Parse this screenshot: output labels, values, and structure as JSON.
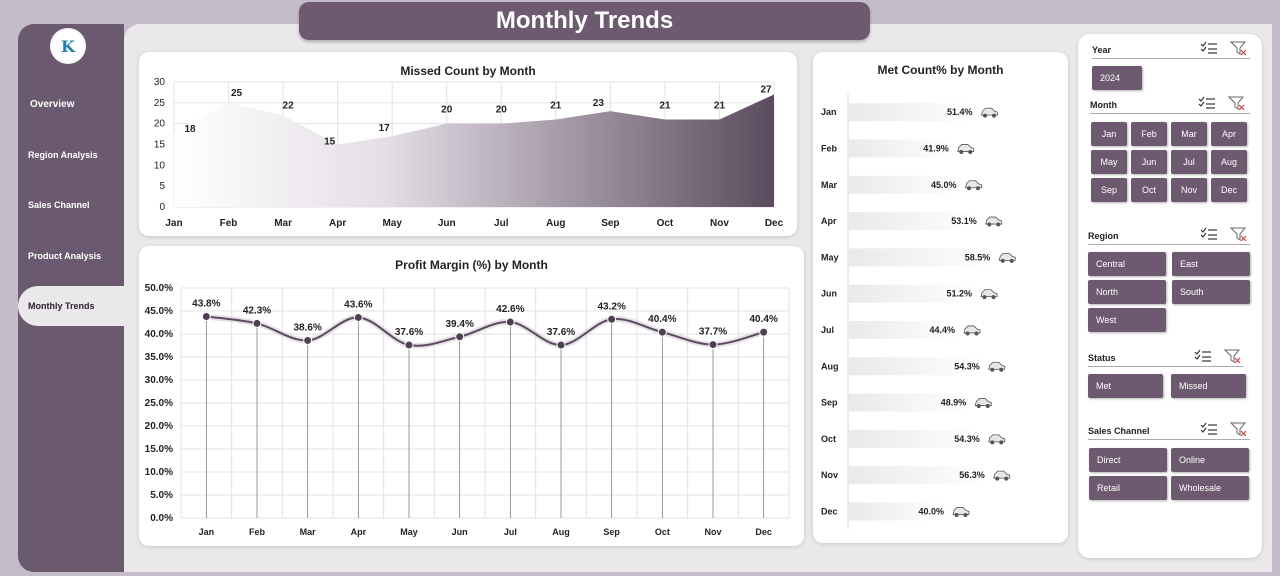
{
  "title": "Monthly Trends",
  "nav": [
    {
      "label": "Overview",
      "name": "nav-overview"
    },
    {
      "label": "Region Analysis",
      "name": "nav-region-analysis"
    },
    {
      "label": "Sales Channel",
      "name": "nav-sales-channel"
    },
    {
      "label": "Product Analysis",
      "name": "nav-product-analysis"
    },
    {
      "label": "Monthly Trends",
      "name": "nav-monthly-trends"
    }
  ],
  "colors": {
    "accent": "#6e5a70",
    "sidebar": "#6b5a6f",
    "line": "#5b4b5e"
  },
  "chart_data": [
    {
      "type": "area",
      "title": "Missed Count by Month",
      "categories": [
        "Jan",
        "Feb",
        "Mar",
        "Apr",
        "May",
        "Jun",
        "Jul",
        "Aug",
        "Sep",
        "Oct",
        "Nov",
        "Dec"
      ],
      "values": [
        18,
        25,
        22,
        15,
        17,
        20,
        20,
        21,
        23,
        21,
        21,
        27
      ],
      "ylim": [
        0,
        30
      ],
      "yticks": [
        "0",
        "5",
        "10",
        "15",
        "20",
        "25",
        "30"
      ],
      "grid": true
    },
    {
      "type": "line",
      "title": "Profit Margin (%) by Month",
      "categories": [
        "Jan",
        "Feb",
        "Mar",
        "Apr",
        "May",
        "Jun",
        "Jul",
        "Aug",
        "Sep",
        "Oct",
        "Nov",
        "Dec"
      ],
      "values": [
        43.8,
        42.3,
        38.6,
        43.6,
        37.6,
        39.4,
        42.6,
        37.6,
        43.2,
        40.4,
        37.7,
        40.4
      ],
      "labels": [
        "43.8%",
        "42.3%",
        "38.6%",
        "43.6%",
        "37.6%",
        "39.4%",
        "42.6%",
        "37.6%",
        "43.2%",
        "40.4%",
        "37.7%",
        "40.4%"
      ],
      "ylim": [
        0,
        50
      ],
      "yticks": [
        "0.0%",
        "5.0%",
        "10.0%",
        "15.0%",
        "20.0%",
        "25.0%",
        "30.0%",
        "35.0%",
        "40.0%",
        "45.0%",
        "50.0%"
      ],
      "grid": true
    },
    {
      "type": "bar",
      "title": "Met Count% by Month",
      "categories": [
        "Jan",
        "Feb",
        "Mar",
        "Apr",
        "May",
        "Jun",
        "Jul",
        "Aug",
        "Sep",
        "Oct",
        "Nov",
        "Dec"
      ],
      "values": [
        51.4,
        41.9,
        45.0,
        53.1,
        58.5,
        51.2,
        44.4,
        54.3,
        48.9,
        54.3,
        56.3,
        40.0
      ],
      "labels": [
        "51.4%",
        "41.9%",
        "45.0%",
        "53.1%",
        "58.5%",
        "51.2%",
        "44.4%",
        "54.3%",
        "48.9%",
        "54.3%",
        "56.3%",
        "40.0%"
      ],
      "xlim": [
        0,
        100
      ],
      "icon": "car-icon"
    }
  ],
  "slicers": {
    "year": {
      "header": "Year",
      "items": [
        "2024"
      ]
    },
    "month": {
      "header": "Month",
      "items": [
        "Jan",
        "Feb",
        "Mar",
        "Apr",
        "May",
        "Jun",
        "Jul",
        "Aug",
        "Sep",
        "Oct",
        "Nov",
        "Dec"
      ]
    },
    "region": {
      "header": "Region",
      "items": [
        "Central",
        "East",
        "North",
        "South",
        "West"
      ]
    },
    "status": {
      "header": "Status",
      "items": [
        "Met",
        "Missed"
      ]
    },
    "channel": {
      "header": "Sales Channel",
      "items": [
        "Direct",
        "Online",
        "Retail",
        "Wholesale"
      ]
    }
  }
}
